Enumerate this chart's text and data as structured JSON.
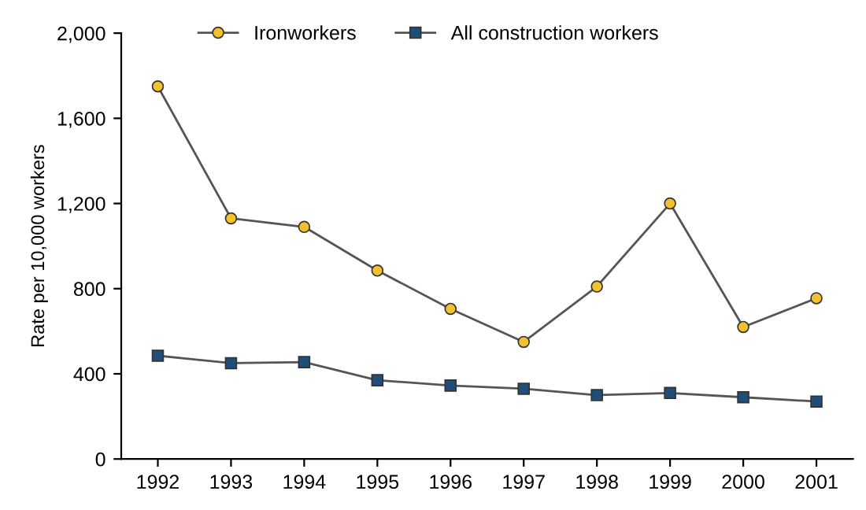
{
  "chart_data": {
    "type": "line",
    "ylabel": "Rate per 10,000 workers",
    "categories": [
      "1992",
      "1993",
      "1994",
      "1995",
      "1996",
      "1997",
      "1998",
      "1999",
      "2000",
      "2001"
    ],
    "series": [
      {
        "name": "Ironworkers",
        "color": "#f2c12e",
        "marker": "circle",
        "values": [
          1750,
          1130,
          1090,
          885,
          705,
          550,
          810,
          1200,
          620,
          755
        ]
      },
      {
        "name": "All construction workers",
        "color": "#1f4e79",
        "marker": "square",
        "values": [
          485,
          450,
          455,
          370,
          345,
          330,
          300,
          310,
          290,
          270
        ]
      }
    ],
    "ylim": [
      0,
      2000
    ],
    "yticks": [
      {
        "value": 0,
        "label": "0"
      },
      {
        "value": 400,
        "label": "400"
      },
      {
        "value": 800,
        "label": "800"
      },
      {
        "value": 1200,
        "label": "1,200"
      },
      {
        "value": 1600,
        "label": "1,600"
      },
      {
        "value": 2000,
        "label": "2,000"
      }
    ],
    "grid": false,
    "legend": "top",
    "line_style": "solid"
  }
}
